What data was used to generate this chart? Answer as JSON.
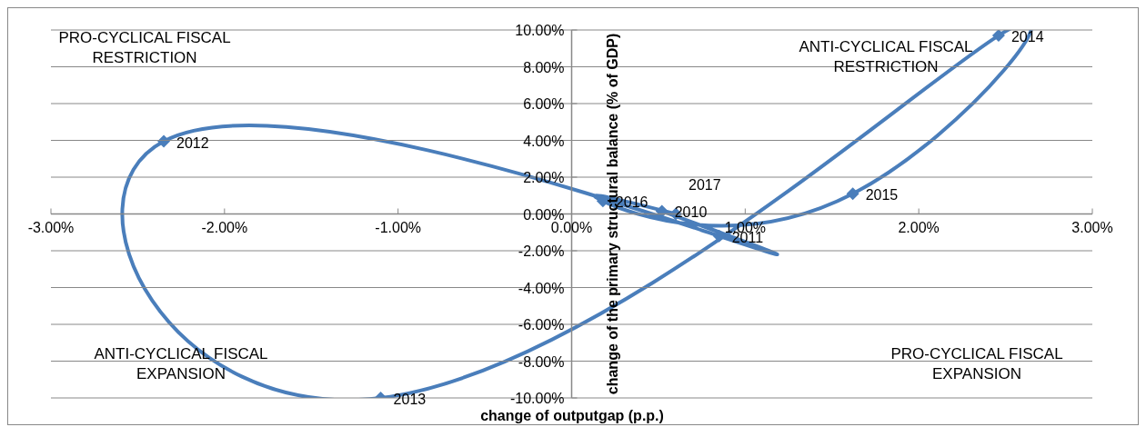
{
  "chart_data": {
    "type": "line",
    "xlabel": "change of outputgap (p.p.)",
    "ylabel": "change of the primary structural balance (% of GDP)",
    "x": [
      0.52,
      0.85,
      -2.35,
      -1.1,
      2.46,
      1.62,
      0.18,
      0.6
    ],
    "series": [
      {
        "color": "#4a7ebb",
        "values": [
          0.15,
          -1.2,
          3.95,
          -10.0,
          9.7,
          1.1,
          0.7,
          0.0
        ]
      }
    ],
    "xlim": [
      -3,
      3
    ],
    "xticks": [
      {
        "value": -3,
        "label": "-3.00%"
      },
      {
        "value": -2,
        "label": "-2.00%"
      },
      {
        "value": -1,
        "label": "-1.00%"
      },
      {
        "value": 0,
        "label": "0.00%"
      },
      {
        "value": 1,
        "label": "1.00%"
      },
      {
        "value": 2,
        "label": "2.00%"
      },
      {
        "value": 3,
        "label": "3.00%"
      }
    ],
    "ylim": [
      -10,
      10
    ],
    "yticks": [
      {
        "value": -10,
        "label": "-10.00%"
      },
      {
        "value": -8,
        "label": "-8.00%"
      },
      {
        "value": -6,
        "label": "-6.00%"
      },
      {
        "value": -4,
        "label": "-4.00%"
      },
      {
        "value": -2,
        "label": "-2.00%"
      },
      {
        "value": 0,
        "label": "0.00%"
      },
      {
        "value": 2,
        "label": "2.00%"
      },
      {
        "value": 4,
        "label": "4.00%"
      },
      {
        "value": 6,
        "label": "6.00%"
      },
      {
        "value": 8,
        "label": "8.00%"
      },
      {
        "value": 10,
        "label": "10.00%"
      }
    ],
    "grid": "y",
    "marker": "diamond",
    "line_style": "solid",
    "annotations": [
      {
        "text": "2010",
        "x": 0.52,
        "y": 0.15
      },
      {
        "text": "2011",
        "x": 0.85,
        "y": -1.2
      },
      {
        "text": "2012",
        "x": -2.35,
        "y": 3.95
      },
      {
        "text": "2013",
        "x": -1.1,
        "y": -10.0
      },
      {
        "text": "2014",
        "x": 2.46,
        "y": 9.7
      },
      {
        "text": "2015",
        "x": 1.62,
        "y": 1.1
      },
      {
        "text": "2016",
        "x": 0.18,
        "y": 0.7
      },
      {
        "text": "2017",
        "x": 0.6,
        "y": 0.0
      },
      "PRO-CYCLICAL FISCAL RESTRICTION",
      "ANTI-CYCLICAL FISCAL RESTRICTION",
      "ANTI-CYCLICAL FISCAL EXPANSION",
      "PRO-CYCLICAL FISCAL EXPANSION"
    ]
  }
}
